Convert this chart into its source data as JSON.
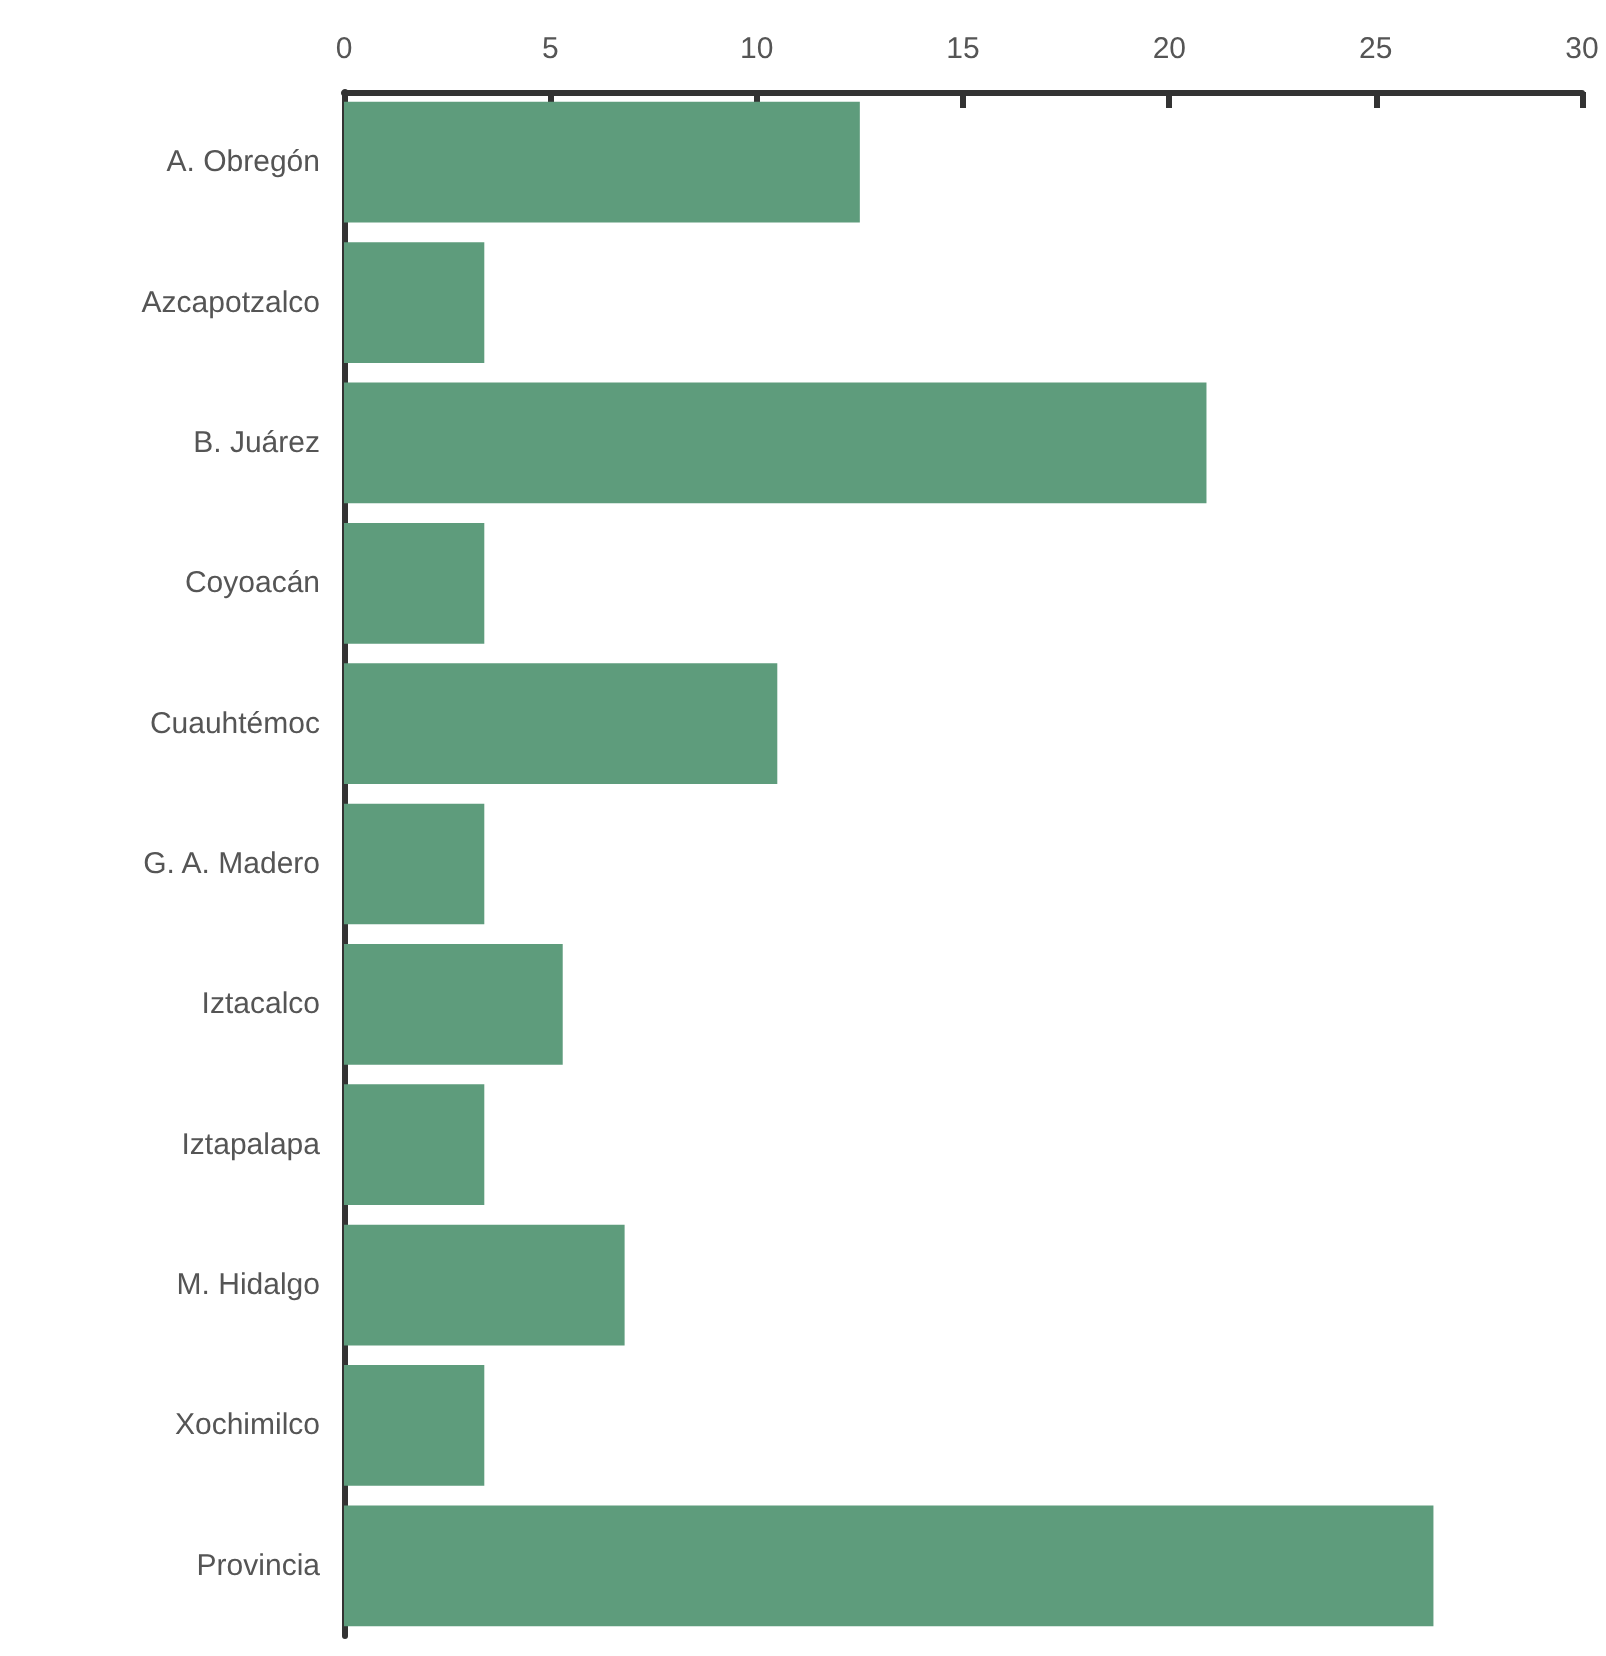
{
  "chart_data": {
    "type": "bar",
    "orientation": "horizontal",
    "categories": [
      "A. Obregón",
      "Azcapotzalco",
      "B. Juárez",
      "Coyoacán",
      "Cuauhtémoc",
      "G. A. Madero",
      "Iztacalco",
      "Iztapalapa",
      "M. Hidalgo",
      "Xochimilco",
      "Provincia"
    ],
    "values": [
      12.5,
      3.4,
      20.9,
      3.4,
      10.5,
      3.4,
      5.3,
      3.4,
      6.8,
      3.4,
      26.4
    ],
    "color": "#5e9c7c",
    "xlim": [
      0,
      30
    ],
    "xticks": [
      0,
      5,
      10,
      15,
      20,
      25,
      30
    ],
    "grid": false
  }
}
